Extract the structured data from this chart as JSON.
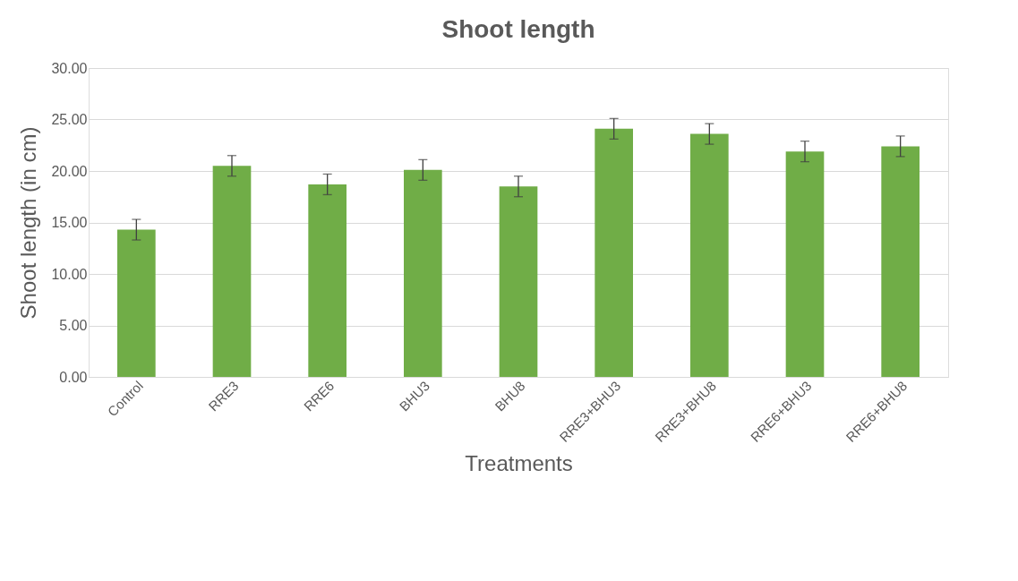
{
  "chart_data": {
    "type": "bar",
    "title": "Shoot length",
    "xlabel": "Treatments",
    "ylabel": "Shoot length (in cm)",
    "categories": [
      "Control",
      "RRE3",
      "RRE6",
      "BHU3",
      "BHU8",
      "RRE3+BHU3",
      "RRE3+BHU8",
      "RRE6+BHU3",
      "RRE6+BHU8"
    ],
    "values": [
      14.3,
      20.5,
      18.7,
      20.1,
      18.5,
      24.1,
      23.6,
      21.9,
      22.4
    ],
    "errors": [
      1.0,
      1.0,
      1.0,
      1.0,
      1.0,
      1.0,
      1.0,
      1.0,
      1.0
    ],
    "color": "#70ad47",
    "ylim": [
      0,
      30
    ],
    "yticks": [
      {
        "value": 0,
        "label": "0.00"
      },
      {
        "value": 5,
        "label": "5.00"
      },
      {
        "value": 10,
        "label": "10.00"
      },
      {
        "value": 15,
        "label": "15.00"
      },
      {
        "value": 20,
        "label": "20.00"
      },
      {
        "value": 25,
        "label": "25.00"
      },
      {
        "value": 30,
        "label": "30.00"
      }
    ],
    "grid": "y"
  }
}
